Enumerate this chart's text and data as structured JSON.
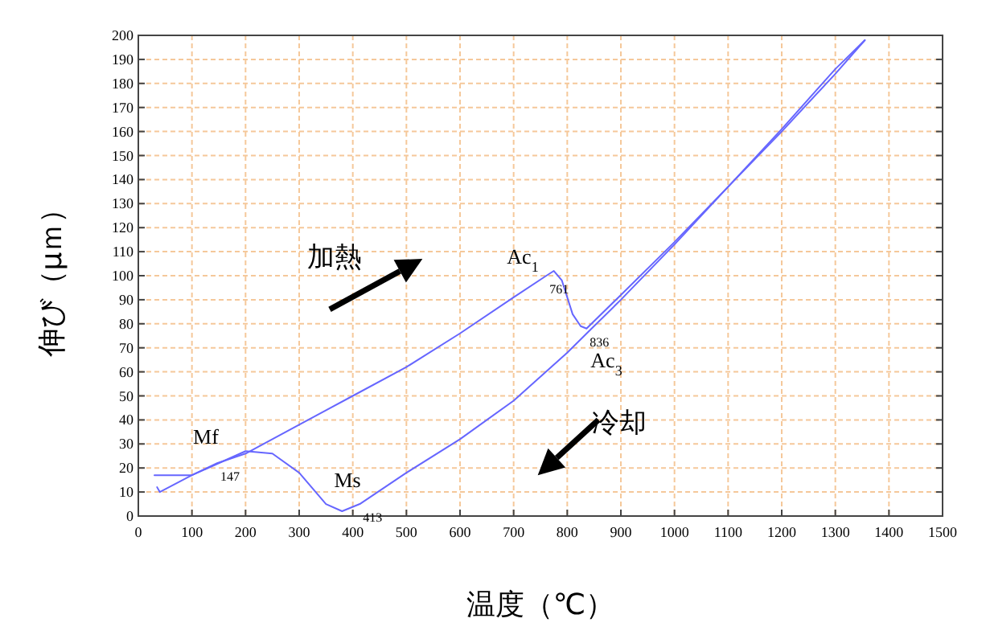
{
  "chart_data": {
    "type": "line",
    "xlabel": "温度（℃）",
    "ylabel": "伸び（μｍ）",
    "xlim": [
      0,
      1500
    ],
    "xticks": [
      0,
      100,
      200,
      300,
      400,
      500,
      600,
      700,
      800,
      900,
      1000,
      1100,
      1200,
      1300,
      1400,
      1500
    ],
    "ylim": [
      0,
      200
    ],
    "yticks": [
      0,
      10,
      20,
      30,
      40,
      50,
      60,
      70,
      80,
      90,
      100,
      110,
      120,
      130,
      140,
      150,
      160,
      170,
      180,
      190,
      200
    ],
    "grid": true,
    "marker": "none",
    "line_style": "solid",
    "series": [
      {
        "color": "#6666ff",
        "x": [
          35,
          40,
          100,
          147,
          200,
          300,
          400,
          500,
          600,
          700,
          761,
          775,
          790,
          810,
          825,
          836,
          900,
          1000,
          1100,
          1200,
          1300,
          1355
        ],
        "values": [
          12,
          10,
          17,
          22,
          26,
          38,
          50,
          62,
          76,
          91,
          100,
          102,
          98,
          84,
          79,
          78,
          92,
          114,
          137,
          160,
          184,
          198
        ]
      },
      {
        "color": "#6666ff",
        "x": [
          1355,
          1300,
          1200,
          1100,
          1000,
          900,
          850,
          800,
          700,
          600,
          500,
          413,
          380,
          350,
          300,
          250,
          200,
          150,
          100,
          30
        ],
        "values": [
          198,
          186,
          161,
          137,
          113,
          90,
          79,
          68,
          48,
          32,
          18,
          5,
          2,
          5,
          18,
          26,
          27,
          22,
          17,
          17
        ]
      }
    ],
    "annotations": [
      "加熱",
      "冷却",
      "Mf",
      "Ms",
      "Ac$_{1}$",
      "Ac$_{3}$",
      {
        "text": "147",
        "x": 147,
        "y": 22
      },
      {
        "text": "761",
        "x": 761,
        "y": 100
      },
      {
        "text": "836",
        "x": 836,
        "y": 78
      },
      {
        "text": "413",
        "x": 413,
        "y": 5
      }
    ]
  }
}
